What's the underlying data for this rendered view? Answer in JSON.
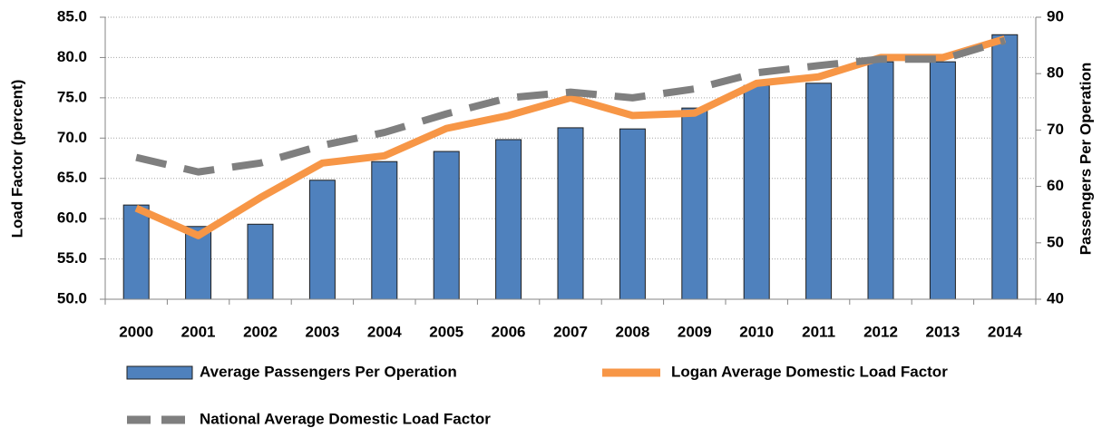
{
  "chart_data": {
    "type": "bar",
    "y_label": "Load Factor (percent)",
    "y2_label": "Passengers Per Operation",
    "categories": [
      "2000",
      "2001",
      "2002",
      "2003",
      "2004",
      "2005",
      "2006",
      "2007",
      "2008",
      "2009",
      "2010",
      "2011",
      "2012",
      "2013",
      "2014"
    ],
    "series": [
      {
        "name": "Average Passengers Per Operation",
        "type": "bar",
        "axis": "y2",
        "color": "#4f81bd",
        "values": [
          56.7,
          52.9,
          53.3,
          61.1,
          64.4,
          66.2,
          68.3,
          70.4,
          70.2,
          73.9,
          77.9,
          78.3,
          82.1,
          82.1,
          86.9
        ]
      },
      {
        "name": "Logan Average Domestic Load Factor",
        "type": "line",
        "color": "#f79646",
        "values": [
          61.3,
          57.9,
          62.6,
          66.9,
          67.8,
          71.2,
          72.8,
          75.0,
          72.8,
          73.1,
          76.8,
          77.6,
          80.0,
          80.0,
          82.3
        ]
      },
      {
        "name": "National Average Domestic Load Factor",
        "type": "dashed-line",
        "color": "#7f7f7f",
        "values": [
          67.6,
          65.8,
          66.9,
          69.1,
          70.7,
          73.0,
          75.0,
          75.7,
          75.0,
          76.1,
          78.1,
          79.0,
          79.8,
          79.8,
          82.1
        ]
      }
    ],
    "ylim": [
      50,
      85
    ],
    "yticks": [
      {
        "value": 50,
        "label": "50.0"
      },
      {
        "value": 55,
        "label": "55.0"
      },
      {
        "value": 60,
        "label": "60.0"
      },
      {
        "value": 65,
        "label": "65.0"
      },
      {
        "value": 70,
        "label": "70.0"
      },
      {
        "value": 75,
        "label": "75.0"
      },
      {
        "value": 80,
        "label": "80.0"
      },
      {
        "value": 85,
        "label": "85.0"
      }
    ],
    "y2lim": [
      40,
      90
    ],
    "y2ticks": [
      40,
      50,
      60,
      70,
      80,
      90
    ],
    "grid": true,
    "legend": "bottom"
  }
}
